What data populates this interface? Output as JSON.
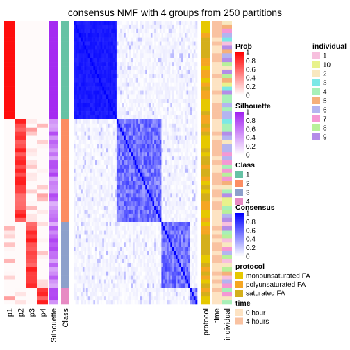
{
  "chart_data": {
    "type": "heatmap",
    "title": "consensus NMF with 4 groups from 250 partitions",
    "prob_columns": [
      "p1",
      "p2",
      "p3",
      "p4"
    ],
    "column_labels": [
      "p1",
      "p2",
      "p3",
      "p4",
      "Silhouette",
      "Class",
      "protocol",
      "time",
      "individual"
    ],
    "group_sizes": [
      24,
      25,
      16,
      4
    ],
    "legends": {
      "prob": {
        "title": "Prob",
        "ticks": [
          "1",
          "0.8",
          "0.6",
          "0.4",
          "0.2",
          "0"
        ],
        "colors": [
          "#ffffff",
          "#ff0000"
        ]
      },
      "silhouette": {
        "title": "Silhouette",
        "ticks": [
          "1",
          "0.8",
          "0.6",
          "0.4",
          "0.2",
          "0"
        ],
        "colors": [
          "#ffffff",
          "#a020f0"
        ]
      },
      "class": {
        "title": "Class",
        "items": [
          {
            "label": "1",
            "color": "#66c2a5"
          },
          {
            "label": "2",
            "color": "#fc8d62"
          },
          {
            "label": "3",
            "color": "#8da0cb"
          },
          {
            "label": "4",
            "color": "#e78ac3"
          }
        ]
      },
      "consensus": {
        "title": "Consensus",
        "ticks": [
          "1",
          "0.8",
          "0.6",
          "0.4",
          "0.2",
          "0"
        ],
        "colors": [
          "#ffffff",
          "#0000ff"
        ]
      },
      "protocol": {
        "title": "protocol",
        "items": [
          {
            "label": "monounsaturated FA",
            "color": "#e6c800"
          },
          {
            "label": "polyunsaturated FA",
            "color": "#f5a623"
          },
          {
            "label": "saturated FA",
            "color": "#d4af1c"
          }
        ]
      },
      "time": {
        "title": "time",
        "items": [
          {
            "label": "0 hour",
            "color": "#fde3c3"
          },
          {
            "label": "4 hours",
            "color": "#f9c2a1"
          }
        ]
      },
      "individual": {
        "title": "individual",
        "items": [
          {
            "label": "1",
            "color": "#f7c0de"
          },
          {
            "label": "10",
            "color": "#e8f28c"
          },
          {
            "label": "2",
            "color": "#f8e8c0"
          },
          {
            "label": "3",
            "color": "#7ce8e6"
          },
          {
            "label": "4",
            "color": "#a8f0b8"
          },
          {
            "label": "5",
            "color": "#f5b07a"
          },
          {
            "label": "6",
            "color": "#b4b4f0"
          },
          {
            "label": "7",
            "color": "#f598d4"
          },
          {
            "label": "8",
            "color": "#b8f09a"
          },
          {
            "label": "9",
            "color": "#b48ce8"
          }
        ]
      }
    }
  }
}
